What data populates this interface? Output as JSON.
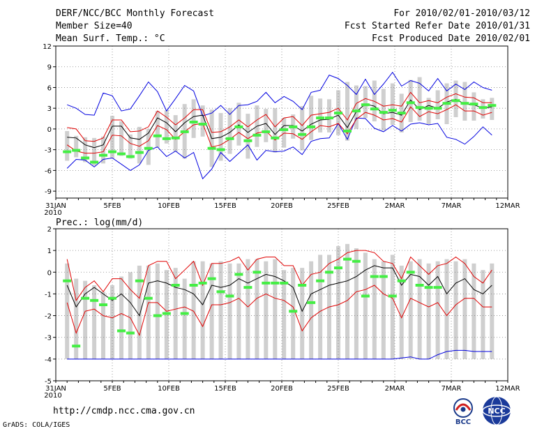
{
  "header": {
    "title": "DERF/NCC/BCC Monthly Forecast",
    "member_size": "Member Size=40",
    "variable": "Mean Surf. Temp.: °C",
    "period": "For 2010/02/01-2010/03/12",
    "fcst_started": "Fcst Started Refer Date 2010/01/31",
    "fcst_produced": "Fcst Produced Date 2010/02/01"
  },
  "footer": {
    "url": "http://cmdp.ncc.cma.gov.cn",
    "grads": "GrADS: COLA/IGES",
    "bcc_logo_text": "BCC",
    "ncc_logo_text": "NCC"
  },
  "colors": {
    "bar": "#cfcfcf",
    "mean": "#000000",
    "spread": "#e00000",
    "envelope": "#0000e0",
    "observed": "#44ee44",
    "grid": "#808080"
  },
  "chart_data": [
    {
      "type": "line",
      "title": "Mean Surf. Temp.: °C",
      "xlabel": "",
      "ylabel": "",
      "ylim": [
        -10,
        12
      ],
      "yticks": [
        12,
        9,
        6,
        3,
        0,
        -3,
        -6,
        -9
      ],
      "x_tick_labels": [
        "31JAN",
        "5FEB",
        "10FEB",
        "15FEB",
        "20FEB",
        "25FEB",
        "2MAR",
        "7MAR",
        "12MAR"
      ],
      "x_tick_days": [
        0,
        5,
        10,
        15,
        20,
        25,
        30,
        35,
        40
      ],
      "x_year_label": "2010",
      "grid": true,
      "series": [
        {
          "name": "ensemble-mean",
          "values": [
            -1.2,
            -1.3,
            -2.3,
            -2.7,
            -2.3,
            0.4,
            0.4,
            -1.3,
            -1.5,
            -0.6,
            1.6,
            0.9,
            -0.4,
            0.9,
            1.8,
            2.0,
            -1.4,
            -1.2,
            -0.5,
            0.6,
            -0.5,
            0.4,
            0.8,
            -0.8,
            0.5,
            0.5,
            -0.3,
            0.7,
            1.3,
            1.4,
            2.0,
            0.2,
            2.5,
            3.6,
            3.3,
            2.2,
            2.4,
            2.0,
            4.2,
            2.8,
            3.4,
            3.0,
            3.9,
            4.3,
            3.6,
            3.5,
            3.0,
            3.2
          ]
        },
        {
          "name": "member-upper",
          "values": [
            0.2,
            0.0,
            -1.7,
            -1.8,
            -1.3,
            1.3,
            1.3,
            -0.4,
            -0.3,
            0.3,
            2.6,
            1.7,
            0.6,
            1.6,
            2.8,
            2.8,
            -0.5,
            -0.4,
            0.3,
            1.3,
            0.3,
            1.3,
            2.1,
            0.3,
            1.6,
            1.8,
            0.5,
            2.0,
            2.2,
            2.4,
            3.0,
            1.3,
            3.7,
            4.4,
            4.0,
            3.3,
            3.5,
            3.3,
            5.3,
            3.8,
            4.1,
            3.8,
            4.6,
            5.1,
            4.6,
            4.5,
            3.8,
            3.8
          ]
        },
        {
          "name": "member-lower",
          "values": [
            -2.3,
            -3.2,
            -3.5,
            -3.5,
            -3.3,
            -0.9,
            -1.0,
            -2.1,
            -2.5,
            -1.7,
            0.5,
            -0.1,
            -1.5,
            -0.4,
            0.6,
            0.8,
            -2.6,
            -2.3,
            -1.5,
            -0.5,
            -1.4,
            -0.6,
            -0.3,
            -1.6,
            -0.6,
            -0.7,
            -1.5,
            -0.4,
            0.5,
            0.3,
            0.8,
            -0.7,
            1.4,
            2.4,
            2.0,
            1.3,
            1.5,
            1.0,
            3.2,
            1.8,
            2.5,
            2.2,
            2.8,
            3.5,
            2.6,
            2.6,
            2.0,
            2.4
          ]
        },
        {
          "name": "envelope-max",
          "values": [
            3.5,
            3.0,
            2.1,
            2.0,
            5.2,
            4.8,
            2.6,
            2.9,
            4.8,
            6.8,
            5.4,
            2.6,
            4.4,
            6.3,
            5.5,
            1.9,
            2.3,
            3.4,
            2.1,
            3.4,
            3.5,
            4.0,
            5.3,
            3.8,
            4.7,
            4.0,
            2.8,
            5.3,
            5.6,
            7.8,
            7.3,
            6.3,
            5.0,
            7.2,
            5.0,
            6.5,
            8.2,
            6.2,
            7.0,
            6.6,
            5.5,
            7.3,
            5.5,
            6.5,
            5.7,
            6.8,
            6.0,
            5.6
          ]
        },
        {
          "name": "envelope-min",
          "values": [
            -5.7,
            -4.4,
            -4.5,
            -5.5,
            -4.4,
            -4.2,
            -5.1,
            -6.0,
            -5.2,
            -3.1,
            -2.6,
            -4.0,
            -3.2,
            -4.2,
            -3.4,
            -7.2,
            -5.8,
            -3.4,
            -4.7,
            -3.5,
            -2.3,
            -4.5,
            -3.1,
            -3.3,
            -3.2,
            -2.6,
            -3.7,
            -1.8,
            -1.4,
            -1.3,
            0.8,
            -1.5,
            1.6,
            1.5,
            0.1,
            -0.4,
            0.5,
            -0.3,
            0.7,
            0.9,
            0.6,
            0.8,
            -1.2,
            -1.5,
            -2.2,
            -1.1,
            0.3,
            -0.9
          ]
        },
        {
          "name": "observed",
          "values": [
            -3.3,
            -3.1,
            -4.2,
            -4.8,
            -3.8,
            -3.3,
            -3.6,
            -4.0,
            -3.4,
            -2.8,
            -1.0,
            -1.4,
            -1.3,
            -0.4,
            1.0,
            0.7,
            -2.8,
            -3.0,
            -1.4,
            0.3,
            -1.7,
            -0.9,
            -0.4,
            -1.3,
            -0.1,
            0.3,
            -0.8,
            0.3,
            1.6,
            1.6,
            2.3,
            -0.3,
            2.6,
            3.5,
            2.9,
            2.4,
            2.7,
            2.3,
            3.8,
            3.1,
            3.0,
            3.0,
            3.7,
            4.1,
            3.7,
            3.6,
            3.1,
            3.4
          ]
        },
        {
          "name": "spread-max",
          "values": [
            -0.3,
            -1.0,
            -1.2,
            -1.3,
            -1.1,
            1.9,
            1.1,
            -0.8,
            0.3,
            0.0,
            2.6,
            2.7,
            2.0,
            3.6,
            4.3,
            3.4,
            2.8,
            2.3,
            3.0,
            3.8,
            2.2,
            3.4,
            2.9,
            3.0,
            1.6,
            2.1,
            3.3,
            4.8,
            4.4,
            4.3,
            5.6,
            6.8,
            6.3,
            6.2,
            7.0,
            5.8,
            6.6,
            5.1,
            7.1,
            7.5,
            4.5,
            5.6,
            6.6,
            7.0,
            6.8,
            5.3,
            4.3,
            4.5
          ]
        },
        {
          "name": "spread-min",
          "values": [
            -4.6,
            -4.1,
            -4.8,
            -5.3,
            -5.0,
            -4.3,
            -3.9,
            -4.3,
            -5.0,
            -5.2,
            -2.7,
            -2.1,
            -3.3,
            -4.3,
            -1.3,
            -1.1,
            -5.5,
            -4.6,
            -3.6,
            -2.4,
            -4.3,
            -2.6,
            -1.9,
            -3.4,
            -2.7,
            -1.4,
            -3.1,
            -1.6,
            -0.5,
            -0.5,
            -0.9,
            -1.7,
            0.0,
            1.6,
            1.1,
            -0.2,
            0.6,
            -0.5,
            1.0,
            1.2,
            0.7,
            1.4,
            0.7,
            1.7,
            1.2,
            1.2,
            1.5,
            1.3
          ]
        }
      ]
    },
    {
      "type": "line",
      "title": "Prec.: log(mm/d)",
      "xlabel": "",
      "ylabel": "",
      "ylim": [
        -5,
        2
      ],
      "yticks": [
        2,
        1,
        0,
        -1,
        -2,
        -3,
        -4,
        -5
      ],
      "x_tick_labels": [
        "31JAN",
        "5FEB",
        "10FEB",
        "15FEB",
        "20FEB",
        "25FEB",
        "2MAR",
        "7MAR",
        "12MAR"
      ],
      "x_tick_days": [
        0,
        5,
        10,
        15,
        20,
        25,
        30,
        35,
        40
      ],
      "x_year_label": "2010",
      "grid": true,
      "series": [
        {
          "name": "ensemble-mean",
          "values": [
            -0.6,
            -1.6,
            -1.0,
            -0.7,
            -1.0,
            -1.3,
            -1.0,
            -1.4,
            -2.0,
            -0.5,
            -0.4,
            -0.5,
            -0.7,
            -0.8,
            -1.0,
            -1.5,
            -0.6,
            -0.7,
            -0.6,
            -0.3,
            -0.5,
            -0.3,
            -0.1,
            -0.2,
            -0.4,
            -0.7,
            -1.8,
            -1.0,
            -0.8,
            -0.6,
            -0.5,
            -0.4,
            -0.2,
            0.1,
            0.3,
            0.2,
            0.2,
            -0.6,
            -0.1,
            -0.2,
            -0.6,
            -0.2,
            -1.0,
            -0.5,
            -0.3,
            -0.8,
            -1.0,
            -0.6
          ]
        },
        {
          "name": "member-upper",
          "values": [
            0.6,
            -1.3,
            -0.7,
            -0.4,
            -0.9,
            -0.3,
            -0.3,
            -0.8,
            -1.2,
            0.3,
            0.5,
            0.5,
            -0.3,
            0.1,
            0.5,
            -0.6,
            0.4,
            0.4,
            0.5,
            0.7,
            0.1,
            0.6,
            0.7,
            0.7,
            0.3,
            0.3,
            -0.6,
            -0.1,
            0.0,
            0.4,
            0.6,
            0.9,
            1.0,
            1.0,
            0.9,
            0.5,
            0.4,
            -0.3,
            0.7,
            0.3,
            -0.1,
            0.3,
            0.4,
            0.7,
            0.4,
            -0.2,
            -0.5,
            0.1
          ]
        },
        {
          "name": "member-lower",
          "values": [
            -1.4,
            -2.8,
            -1.8,
            -1.7,
            -2.0,
            -2.1,
            -1.9,
            -2.1,
            -2.9,
            -1.4,
            -1.4,
            -1.8,
            -1.7,
            -1.6,
            -1.8,
            -2.5,
            -1.5,
            -1.5,
            -1.4,
            -1.2,
            -1.6,
            -1.2,
            -1.0,
            -1.2,
            -1.3,
            -1.6,
            -2.7,
            -2.1,
            -1.8,
            -1.6,
            -1.5,
            -1.3,
            -0.9,
            -0.8,
            -0.6,
            -1.0,
            -1.2,
            -2.1,
            -1.2,
            -1.4,
            -1.6,
            -1.4,
            -2.0,
            -1.5,
            -1.2,
            -1.2,
            -1.6,
            -1.6
          ]
        },
        {
          "name": "envelope-min",
          "values": [
            -4.0,
            -4.0,
            -4.0,
            -4.0,
            -4.0,
            -4.0,
            -4.0,
            -4.0,
            -4.0,
            -4.0,
            -4.0,
            -4.0,
            -4.0,
            -4.0,
            -4.0,
            -4.0,
            -4.0,
            -4.0,
            -4.0,
            -4.0,
            -4.0,
            -4.0,
            -4.0,
            -4.0,
            -4.0,
            -4.0,
            -4.0,
            -4.0,
            -4.0,
            -4.0,
            -4.0,
            -4.0,
            -4.0,
            -4.0,
            -4.0,
            -4.0,
            -4.0,
            -3.95,
            -3.9,
            -4.0,
            -4.0,
            -3.8,
            -3.65,
            -3.6,
            -3.6,
            -3.65,
            -3.65,
            -3.65
          ]
        },
        {
          "name": "observed",
          "values": [
            -0.4,
            -3.4,
            -1.2,
            -1.3,
            -1.5,
            -1.2,
            -2.7,
            -2.8,
            -0.4,
            -1.2,
            -2.0,
            -1.9,
            -0.6,
            -1.9,
            -0.6,
            -0.5,
            -0.3,
            -0.9,
            -1.1,
            -0.1,
            -0.7,
            0.0,
            -0.5,
            -0.5,
            -0.5,
            -1.8,
            -0.6,
            -1.4,
            -0.4,
            0.0,
            0.2,
            0.6,
            0.5,
            -1.1,
            -0.2,
            -0.2,
            -1.1,
            -0.4,
            0.0,
            -0.6,
            -0.7,
            -0.7
          ]
        },
        {
          "name": "spread-max",
          "values": [
            0.4,
            -0.3,
            -0.4,
            -0.6,
            -0.9,
            -0.6,
            -0.2,
            0.0,
            0.3,
            0.3,
            0.4,
            0.1,
            0.2,
            -0.3,
            0.5,
            0.5,
            0.4,
            0.5,
            0.4,
            0.4,
            0.6,
            0.6,
            0.5,
            0.6,
            0.1,
            0.2,
            0.2,
            0.5,
            0.8,
            0.8,
            1.2,
            1.3,
            1.1,
            0.9,
            0.6,
            0.5,
            0.8,
            0.3,
            0.5,
            0.6,
            0.4,
            0.5,
            0.6,
            0.5,
            0.6,
            0.4,
            0.1,
            0.4
          ]
        },
        {
          "name": "spread-min",
          "values": [
            -4.0,
            -4.0,
            -4.0,
            -4.0,
            -4.0,
            -4.0,
            -4.0,
            -4.0,
            -4.0,
            -4.0,
            -4.0,
            -4.0,
            -4.0,
            -4.0,
            -4.0,
            -4.0,
            -4.0,
            -4.0,
            -4.0,
            -4.0,
            -4.0,
            -4.0,
            -4.0,
            -4.0,
            -4.0,
            -4.0,
            -4.0,
            -4.0,
            -4.0,
            -4.0,
            -4.0,
            -4.0,
            -4.0,
            -4.0,
            -4.0,
            -4.0,
            -4.0,
            -4.0,
            -4.0,
            -4.0,
            -4.0,
            -4.0,
            -4.0,
            -4.0,
            -4.0,
            -4.0,
            -4.0,
            -4.0
          ]
        }
      ]
    }
  ]
}
